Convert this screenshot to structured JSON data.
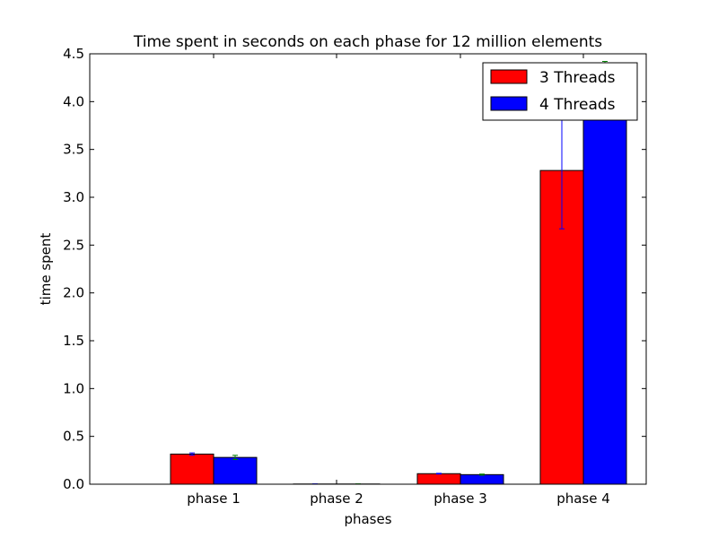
{
  "chart_data": {
    "type": "bar",
    "title": "Time spent in seconds on each phase for 12 million elements",
    "xlabel": "phases",
    "ylabel": "time spent",
    "categories": [
      "phase 1",
      "phase 2",
      "phase 3",
      "phase 4"
    ],
    "ylim": [
      0,
      4.5
    ],
    "yticks": [
      "0.0",
      "0.5",
      "1.0",
      "1.5",
      "2.0",
      "2.5",
      "3.0",
      "3.5",
      "4.0",
      "4.5"
    ],
    "grid": false,
    "legend_position": "top-right",
    "series": [
      {
        "name": "3 Threads",
        "color": "#ff0000",
        "error_color": "#0000ff",
        "values": [
          0.315,
          0.002,
          0.11,
          3.28
        ],
        "errors": [
          0.012,
          0.001,
          0.004,
          0.61
        ]
      },
      {
        "name": "4 Threads",
        "color": "#0000ff",
        "error_color": "#008000",
        "values": [
          0.28,
          0.002,
          0.1,
          4.4
        ],
        "errors": [
          0.022,
          0.001,
          0.006,
          0.02
        ]
      }
    ]
  }
}
